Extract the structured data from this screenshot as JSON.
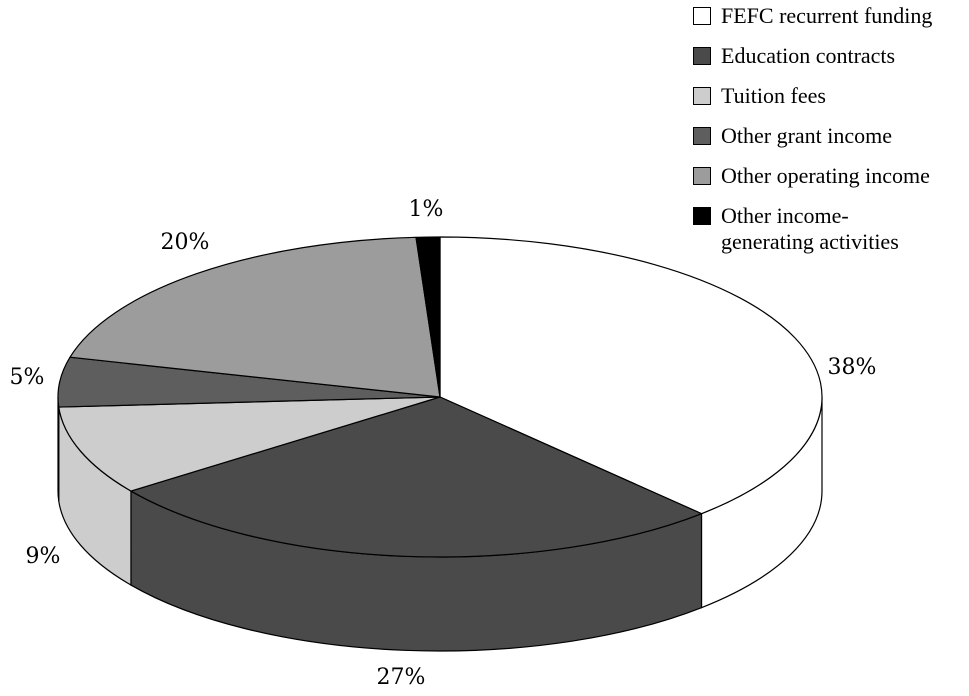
{
  "chart_data": {
    "type": "pie",
    "title": "",
    "style": "3d-pie",
    "slices": [
      {
        "label": "FEFC recurrent funding",
        "value": 38,
        "value_label": "38%",
        "color": "#ffffff"
      },
      {
        "label": "Education contracts",
        "value": 27,
        "value_label": "27%",
        "color": "#4a4a4a"
      },
      {
        "label": "Tuition fees",
        "value": 9,
        "value_label": "9%",
        "color": "#cdcdcd"
      },
      {
        "label": "Other grant income",
        "value": 5,
        "value_label": "5%",
        "color": "#5e5e5e"
      },
      {
        "label": "Other operating income",
        "value": 20,
        "value_label": "20%",
        "color": "#9c9c9c"
      },
      {
        "label": "Other income-\ngenerating activities",
        "value": 1,
        "value_label": "1%",
        "color": "#000000"
      }
    ],
    "legend_position": "top-right"
  }
}
